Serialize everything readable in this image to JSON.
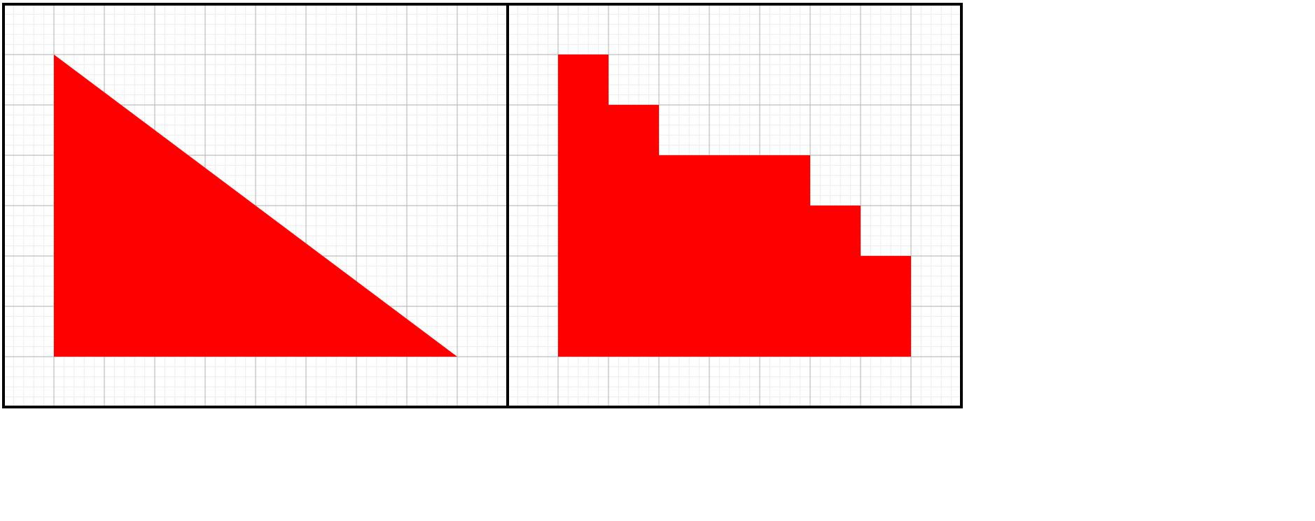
{
  "colors": {
    "background": "#ffffff",
    "minor_grid": "#ececec",
    "major_grid": "#bdbdbd",
    "frame": "#000000",
    "shape_fill": "#ff0000"
  },
  "grid": {
    "major_cells_per_panel": 10,
    "minor_per_major": 5
  },
  "panels": [
    {
      "name": "left-panel",
      "shape": "right-triangle",
      "vertices": [
        [
          1,
          1
        ],
        [
          1,
          7
        ],
        [
          9,
          7
        ]
      ]
    },
    {
      "name": "right-panel",
      "shape": "staircase",
      "vertices": [
        [
          1,
          1
        ],
        [
          2,
          1
        ],
        [
          2,
          2
        ],
        [
          3,
          2
        ],
        [
          3,
          3
        ],
        [
          6,
          3
        ],
        [
          6,
          4
        ],
        [
          7,
          4
        ],
        [
          7,
          5
        ],
        [
          8,
          5
        ],
        [
          8,
          6
        ],
        [
          8,
          7
        ],
        [
          1,
          7
        ]
      ]
    }
  ]
}
